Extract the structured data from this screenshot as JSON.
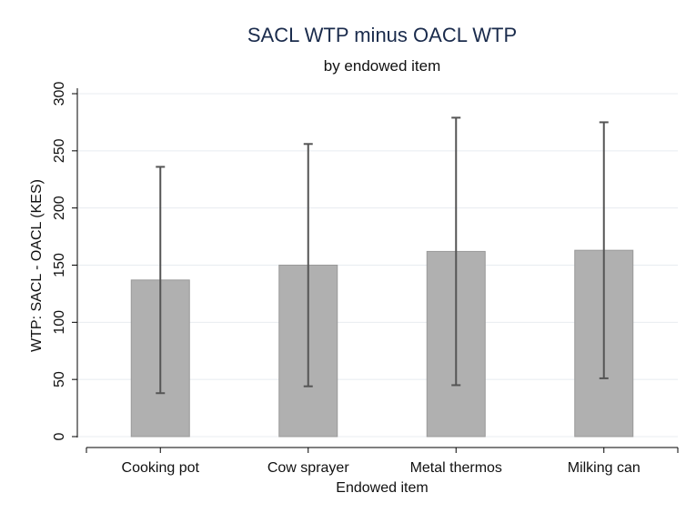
{
  "chart_data": {
    "type": "bar",
    "title": "SACL WTP minus OACL WTP",
    "subtitle": "by endowed item",
    "x_label": "Endowed item",
    "y_label": "WTP: SACL - OACL (KES)",
    "categories": [
      "Cooking pot",
      "Cow sprayer",
      "Metal thermos",
      "Milking can"
    ],
    "values": [
      137,
      150,
      162,
      163
    ],
    "errors": [
      99,
      106,
      117,
      112
    ],
    "color": "#b0b0b0",
    "error_color": "#555555",
    "ylim": [
      0,
      300
    ],
    "yticks": [
      0,
      50,
      100,
      150,
      200,
      250,
      300
    ],
    "grid": true
  }
}
